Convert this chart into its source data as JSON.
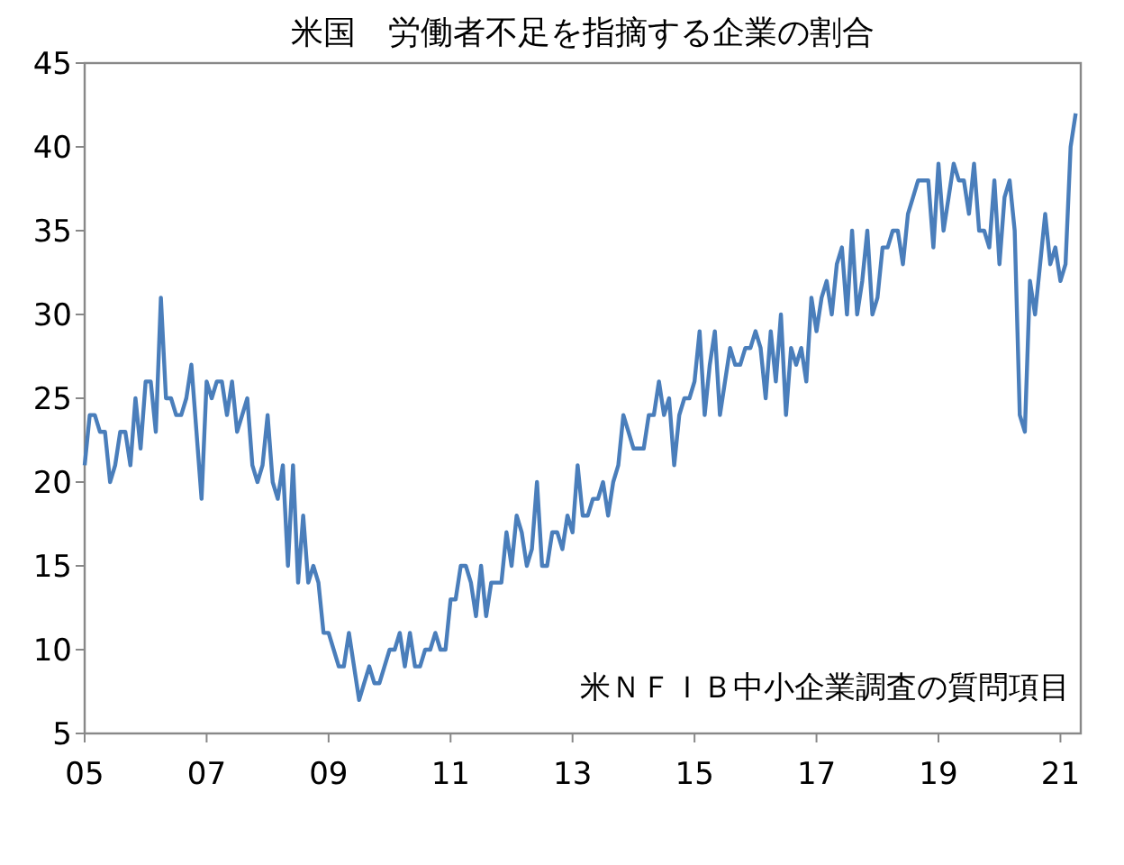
{
  "chart_data": {
    "type": "line",
    "title": "米国　労働者不足を指摘する企業の割合",
    "annotations": [
      "米ＮＦＩＢ中小企業調査の質問項目"
    ],
    "xlim": [
      "2005-01",
      "2021-05"
    ],
    "xticks": [
      {
        "value": "2005-01",
        "label": "05"
      },
      {
        "value": "2007-01",
        "label": "07"
      },
      {
        "value": "2009-01",
        "label": "09"
      },
      {
        "value": "2011-01",
        "label": "11"
      },
      {
        "value": "2013-01",
        "label": "13"
      },
      {
        "value": "2015-01",
        "label": "15"
      },
      {
        "value": "2017-01",
        "label": "17"
      },
      {
        "value": "2019-01",
        "label": "19"
      },
      {
        "value": "2021-01",
        "label": "21"
      }
    ],
    "ylim": [
      5,
      45
    ],
    "yticks": [
      5,
      10,
      15,
      20,
      25,
      30,
      35,
      40,
      45
    ],
    "grid": false,
    "x": [
      "2005-01",
      "2005-02",
      "2005-03",
      "2005-04",
      "2005-05",
      "2005-06",
      "2005-07",
      "2005-08",
      "2005-09",
      "2005-10",
      "2005-11",
      "2005-12",
      "2006-01",
      "2006-02",
      "2006-03",
      "2006-04",
      "2006-05",
      "2006-06",
      "2006-07",
      "2006-08",
      "2006-09",
      "2006-10",
      "2006-11",
      "2006-12",
      "2007-01",
      "2007-02",
      "2007-03",
      "2007-04",
      "2007-05",
      "2007-06",
      "2007-07",
      "2007-08",
      "2007-09",
      "2007-10",
      "2007-11",
      "2007-12",
      "2008-01",
      "2008-02",
      "2008-03",
      "2008-04",
      "2008-05",
      "2008-06",
      "2008-07",
      "2008-08",
      "2008-09",
      "2008-10",
      "2008-11",
      "2008-12",
      "2009-01",
      "2009-02",
      "2009-03",
      "2009-04",
      "2009-05",
      "2009-06",
      "2009-07",
      "2009-08",
      "2009-09",
      "2009-10",
      "2009-11",
      "2009-12",
      "2010-01",
      "2010-02",
      "2010-03",
      "2010-04",
      "2010-05",
      "2010-06",
      "2010-07",
      "2010-08",
      "2010-09",
      "2010-10",
      "2010-11",
      "2010-12",
      "2011-01",
      "2011-02",
      "2011-03",
      "2011-04",
      "2011-05",
      "2011-06",
      "2011-07",
      "2011-08",
      "2011-09",
      "2011-10",
      "2011-11",
      "2011-12",
      "2012-01",
      "2012-02",
      "2012-03",
      "2012-04",
      "2012-05",
      "2012-06",
      "2012-07",
      "2012-08",
      "2012-09",
      "2012-10",
      "2012-11",
      "2012-12",
      "2013-01",
      "2013-02",
      "2013-03",
      "2013-04",
      "2013-05",
      "2013-06",
      "2013-07",
      "2013-08",
      "2013-09",
      "2013-10",
      "2013-11",
      "2013-12",
      "2014-01",
      "2014-02",
      "2014-03",
      "2014-04",
      "2014-05",
      "2014-06",
      "2014-07",
      "2014-08",
      "2014-09",
      "2014-10",
      "2014-11",
      "2014-12",
      "2015-01",
      "2015-02",
      "2015-03",
      "2015-04",
      "2015-05",
      "2015-06",
      "2015-07",
      "2015-08",
      "2015-09",
      "2015-10",
      "2015-11",
      "2015-12",
      "2016-01",
      "2016-02",
      "2016-03",
      "2016-04",
      "2016-05",
      "2016-06",
      "2016-07",
      "2016-08",
      "2016-09",
      "2016-10",
      "2016-11",
      "2016-12",
      "2017-01",
      "2017-02",
      "2017-03",
      "2017-04",
      "2017-05",
      "2017-06",
      "2017-07",
      "2017-08",
      "2017-09",
      "2017-10",
      "2017-11",
      "2017-12",
      "2018-01",
      "2018-02",
      "2018-03",
      "2018-04",
      "2018-05",
      "2018-06",
      "2018-07",
      "2018-08",
      "2018-09",
      "2018-10",
      "2018-11",
      "2018-12",
      "2019-01",
      "2019-02",
      "2019-03",
      "2019-04",
      "2019-05",
      "2019-06",
      "2019-07",
      "2019-08",
      "2019-09",
      "2019-10",
      "2019-11",
      "2019-12",
      "2020-01",
      "2020-02",
      "2020-03",
      "2020-04",
      "2020-05",
      "2020-06",
      "2020-07",
      "2020-08",
      "2020-09",
      "2020-10",
      "2020-11",
      "2020-12",
      "2021-01",
      "2021-02",
      "2021-03",
      "2021-04"
    ],
    "series": [
      {
        "color": "#4a7ebb",
        "values": [
          21,
          24,
          24,
          23,
          23,
          20,
          21,
          23,
          23,
          21,
          25,
          22,
          26,
          26,
          23,
          31,
          25,
          25,
          24,
          24,
          25,
          27,
          23,
          19,
          26,
          25,
          26,
          26,
          24,
          26,
          23,
          24,
          25,
          21,
          20,
          21,
          24,
          20,
          19,
          21,
          15,
          21,
          14,
          18,
          14,
          15,
          14,
          11,
          11,
          10,
          9,
          9,
          11,
          9,
          7,
          8,
          9,
          8,
          8,
          9,
          10,
          10,
          11,
          9,
          11,
          9,
          9,
          10,
          10,
          11,
          10,
          10,
          13,
          13,
          15,
          15,
          14,
          12,
          15,
          12,
          14,
          14,
          14,
          17,
          15,
          18,
          17,
          15,
          16,
          20,
          15,
          15,
          17,
          17,
          16,
          18,
          17,
          21,
          18,
          18,
          19,
          19,
          20,
          18,
          20,
          21,
          24,
          23,
          22,
          22,
          22,
          24,
          24,
          26,
          24,
          25,
          21,
          24,
          25,
          25,
          26,
          29,
          24,
          27,
          29,
          24,
          26,
          28,
          27,
          27,
          28,
          28,
          29,
          28,
          25,
          29,
          26,
          30,
          24,
          28,
          27,
          28,
          26,
          31,
          29,
          31,
          32,
          30,
          33,
          34,
          30,
          35,
          30,
          32,
          35,
          30,
          31,
          34,
          34,
          35,
          35,
          33,
          36,
          37,
          38,
          38,
          38,
          34,
          39,
          35,
          37,
          39,
          38,
          38,
          36,
          39,
          35,
          35,
          34,
          38,
          33,
          37,
          38,
          35,
          24,
          23,
          32,
          30,
          33,
          36,
          33,
          34,
          32,
          33,
          40,
          42
        ]
      }
    ]
  }
}
